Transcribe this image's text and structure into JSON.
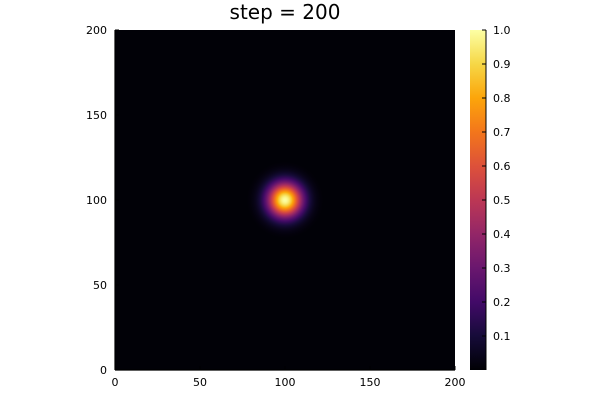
{
  "chart_data": {
    "type": "heatmap",
    "title": "step = 200",
    "xlabel": "",
    "ylabel": "",
    "xlim": [
      0,
      200
    ],
    "ylim": [
      0,
      200
    ],
    "x_ticks": [
      0,
      50,
      100,
      150,
      200
    ],
    "y_ticks": [
      0,
      50,
      100,
      150,
      200
    ],
    "grid": false,
    "colormap": "inferno",
    "field": {
      "shape": "gaussian",
      "center": [
        100,
        100
      ],
      "peak": 1.0,
      "sigma": 7
    },
    "colorbar": {
      "range": [
        0,
        1.0
      ],
      "ticks": [
        0.1,
        0.2,
        0.3,
        0.4,
        0.5,
        0.6,
        0.7,
        0.8,
        0.9,
        1.0
      ],
      "tick_labels": [
        "0.1",
        "0.2",
        "0.3",
        "0.4",
        "0.5",
        "0.6",
        "0.7",
        "0.8",
        "0.9",
        "1.0"
      ]
    }
  }
}
